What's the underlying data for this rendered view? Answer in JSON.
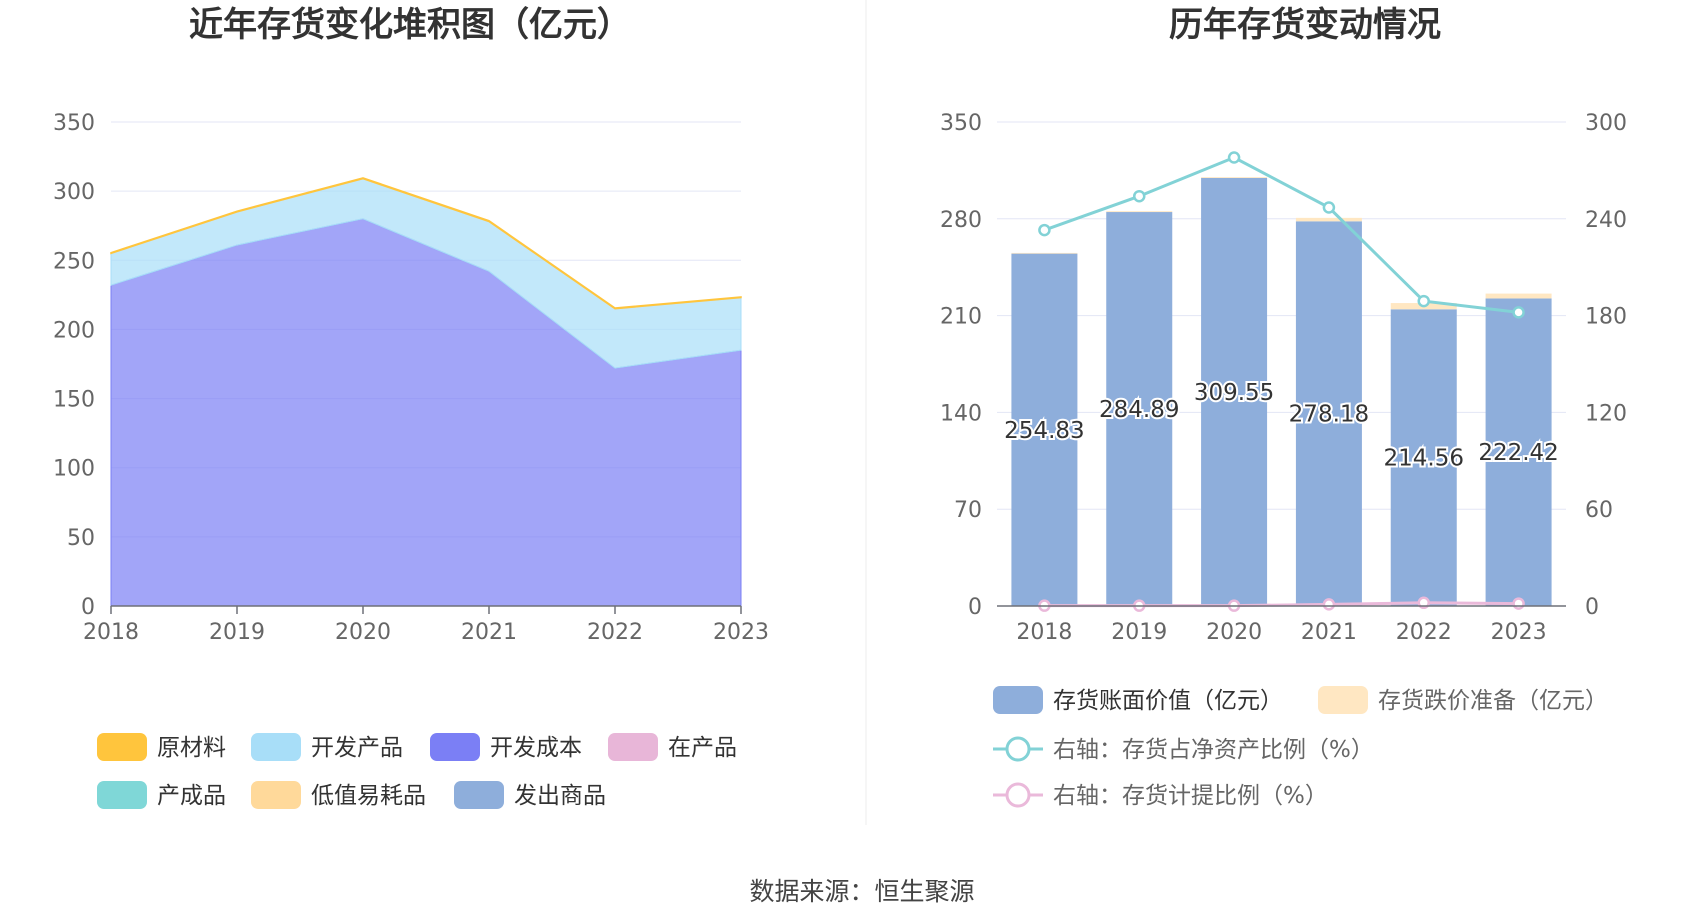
{
  "source": "数据来源：恒生聚源",
  "chart_data": [
    {
      "type": "area",
      "stacked": true,
      "title": "近年存货变化堆积图（亿元）",
      "categories": [
        "2018",
        "2019",
        "2020",
        "2021",
        "2022",
        "2023"
      ],
      "ylim": [
        0,
        350
      ],
      "yticks": [
        0,
        50,
        100,
        150,
        200,
        250,
        300,
        350
      ],
      "grid": true,
      "legend_position": "bottom",
      "series": [
        {
          "name": "原材料",
          "color": "#ffc53d",
          "values": [
            0.5,
            0.5,
            0.6,
            0.6,
            0.5,
            0.5
          ]
        },
        {
          "name": "开发产品",
          "color": "#a8def8",
          "values": [
            23,
            24,
            29,
            36,
            43,
            38
          ]
        },
        {
          "name": "开发成本",
          "color": "#7b7ff5",
          "values": [
            232,
            261,
            280,
            242,
            172,
            185
          ]
        },
        {
          "name": "在产品",
          "color": "#e8b6d8",
          "values": [
            0,
            0,
            0,
            0,
            0,
            0
          ]
        },
        {
          "name": "产成品",
          "color": "#7fd7d7",
          "values": [
            0,
            0,
            0,
            0,
            0,
            0
          ]
        },
        {
          "name": "低值易耗品",
          "color": "#ffd99a",
          "values": [
            0,
            0,
            0,
            0,
            0,
            0
          ]
        },
        {
          "name": "发出商品",
          "color": "#8eaedb",
          "values": [
            0,
            0,
            0,
            0,
            0,
            0
          ]
        }
      ]
    },
    {
      "type": "bar",
      "stacked": true,
      "title": "历年存货变动情况",
      "categories": [
        "2018",
        "2019",
        "2020",
        "2021",
        "2022",
        "2023"
      ],
      "ylim": [
        0,
        350
      ],
      "yticks": [
        0,
        70,
        140,
        210,
        280,
        350
      ],
      "y2lim": [
        0,
        300
      ],
      "y2ticks": [
        0,
        60,
        120,
        180,
        240,
        300
      ],
      "grid": true,
      "legend_position": "bottom",
      "series": [
        {
          "name": "存货账面价值（亿元）",
          "kind": "bar",
          "axis": "left",
          "color": "#8eaedb",
          "values": [
            254.83,
            284.89,
            309.55,
            278.18,
            214.56,
            222.42
          ],
          "labels": [
            "254.83",
            "284.89",
            "309.55",
            "278.18",
            "214.56",
            "222.42"
          ]
        },
        {
          "name": "存货跌价准备（亿元）",
          "kind": "bar",
          "axis": "left",
          "color": "#ffe7c2",
          "values": [
            0.5,
            0.6,
            0.6,
            2.5,
            4.5,
            3.5
          ]
        },
        {
          "name": "右轴：存货占净资产比例（%）",
          "kind": "line",
          "axis": "right",
          "color": "#82d2d6",
          "values": [
            233,
            254,
            278,
            247,
            189,
            182
          ]
        },
        {
          "name": "右轴：存货计提比例（%）",
          "kind": "line",
          "axis": "right",
          "color": "#eab9da",
          "values": [
            0.2,
            0.2,
            0.2,
            1.0,
            2.0,
            1.5
          ]
        }
      ]
    }
  ]
}
